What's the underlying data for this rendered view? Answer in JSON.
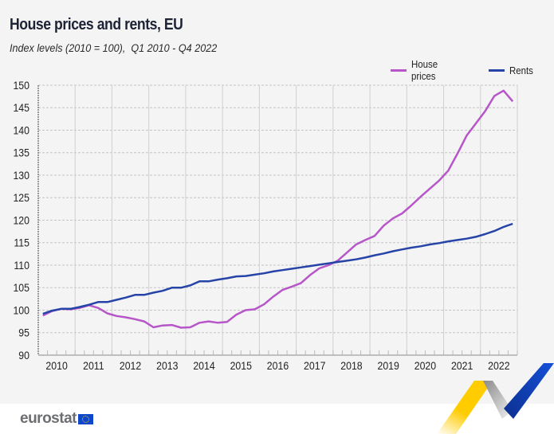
{
  "title": "House prices and rents, EU",
  "subtitle": "Index levels (2010 = 100),  Q1 2010 - Q4 2022",
  "legend": [
    {
      "label": "House prices",
      "color": "#b656c8"
    },
    {
      "label": "Rents",
      "color": "#2644a8"
    }
  ],
  "footer": {
    "brand": "eurostat"
  },
  "chart_data": {
    "type": "line",
    "title": "House prices and rents, EU",
    "subtitle": "Index levels (2010 = 100),  Q1 2010 - Q4 2022",
    "xlabel": "",
    "ylabel": "",
    "ylim": [
      90,
      150
    ],
    "yticks": [
      90,
      95,
      100,
      105,
      110,
      115,
      120,
      125,
      130,
      135,
      140,
      145,
      150
    ],
    "categories": [
      "2010",
      "2011",
      "2012",
      "2013",
      "2014",
      "2015",
      "2016",
      "2017",
      "2018",
      "2019",
      "2020",
      "2021",
      "2022"
    ],
    "x_frequency": "quarterly (Q1 2010 - Q4 2022)",
    "grid": "horizontal dashed, vertical year separators",
    "legend_position": "top-right",
    "series": [
      {
        "name": "House prices",
        "color": "#b656c8",
        "values": [
          98.8,
          99.8,
          100.3,
          100.2,
          100.5,
          101.1,
          100.5,
          99.3,
          98.7,
          98.4,
          98.0,
          97.5,
          96.2,
          96.6,
          96.7,
          96.1,
          96.2,
          97.2,
          97.5,
          97.2,
          97.4,
          99.0,
          100.0,
          100.2,
          101.3,
          103.0,
          104.5,
          105.2,
          106.0,
          107.8,
          109.3,
          110.0,
          111.0,
          112.8,
          114.6,
          115.6,
          116.5,
          118.8,
          120.4,
          121.5,
          123.3,
          125.2,
          127.0,
          128.8,
          131.0,
          134.8,
          138.8,
          141.5,
          144.2,
          147.6,
          148.8,
          146.4
        ]
      },
      {
        "name": "Rents",
        "color": "#2644a8",
        "values": [
          99.2,
          99.9,
          100.3,
          100.3,
          100.7,
          101.2,
          101.8,
          101.8,
          102.3,
          102.8,
          103.4,
          103.4,
          103.9,
          104.3,
          105.0,
          105.0,
          105.5,
          106.4,
          106.4,
          106.8,
          107.1,
          107.5,
          107.6,
          107.9,
          108.2,
          108.6,
          108.9,
          109.2,
          109.5,
          109.8,
          110.1,
          110.4,
          110.7,
          111.0,
          111.3,
          111.7,
          112.2,
          112.6,
          113.1,
          113.5,
          113.9,
          114.2,
          114.6,
          114.9,
          115.3,
          115.6,
          115.9,
          116.3,
          116.9,
          117.6,
          118.5,
          119.2
        ]
      }
    ]
  }
}
